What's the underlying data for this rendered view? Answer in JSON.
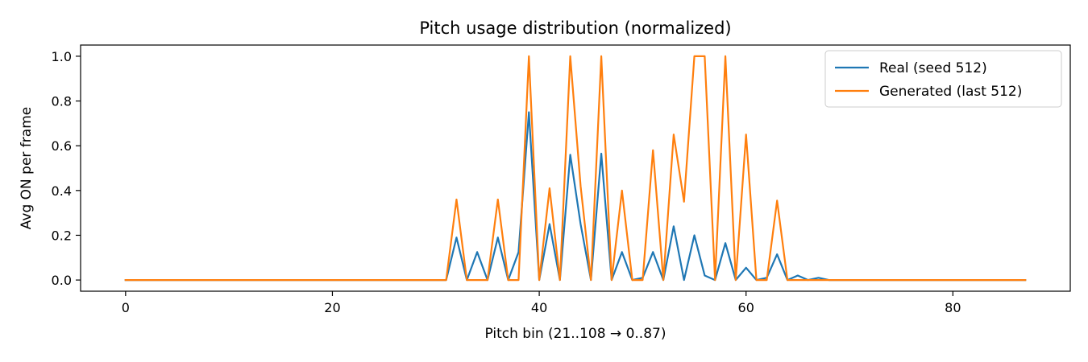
{
  "chart_data": {
    "type": "line",
    "title": "Pitch usage distribution (normalized)",
    "xlabel": "Pitch bin (21..108 → 0..87)",
    "ylabel": "Avg ON per frame",
    "xlim": [
      -4.35,
      91.35
    ],
    "ylim": [
      -0.05,
      1.05
    ],
    "xticks": [
      0,
      20,
      40,
      60,
      80
    ],
    "xtick_labels": [
      "0",
      "20",
      "40",
      "60",
      "80"
    ],
    "yticks": [
      0.0,
      0.2,
      0.4,
      0.6,
      0.8,
      1.0
    ],
    "ytick_labels": [
      "0.0",
      "0.2",
      "0.4",
      "0.6",
      "0.8",
      "1.0"
    ],
    "grid": false,
    "legend_position": "upper right",
    "x": [
      0,
      1,
      2,
      3,
      4,
      5,
      6,
      7,
      8,
      9,
      10,
      11,
      12,
      13,
      14,
      15,
      16,
      17,
      18,
      19,
      20,
      21,
      22,
      23,
      24,
      25,
      26,
      27,
      28,
      29,
      30,
      31,
      32,
      33,
      34,
      35,
      36,
      37,
      38,
      39,
      40,
      41,
      42,
      43,
      44,
      45,
      46,
      47,
      48,
      49,
      50,
      51,
      52,
      53,
      54,
      55,
      56,
      57,
      58,
      59,
      60,
      61,
      62,
      63,
      64,
      65,
      66,
      67,
      68,
      69,
      70,
      71,
      72,
      73,
      74,
      75,
      76,
      77,
      78,
      79,
      80,
      81,
      82,
      83,
      84,
      85,
      86,
      87
    ],
    "series": [
      {
        "name": "Real (seed 512)",
        "color": "#1f77b4",
        "values": [
          0,
          0,
          0,
          0,
          0,
          0,
          0,
          0,
          0,
          0,
          0,
          0,
          0,
          0,
          0,
          0,
          0,
          0,
          0,
          0,
          0,
          0,
          0,
          0,
          0,
          0,
          0,
          0,
          0,
          0,
          0,
          0,
          0.19,
          0,
          0.125,
          0,
          0.19,
          0,
          0.125,
          0.75,
          0,
          0.25,
          0,
          0.56,
          0.25,
          0,
          0.565,
          0,
          0.125,
          0,
          0.01,
          0.125,
          0,
          0.24,
          0,
          0.2,
          0.02,
          0,
          0.165,
          0,
          0.055,
          0,
          0.01,
          0.115,
          0,
          0.02,
          0,
          0.01,
          0,
          0,
          0,
          0,
          0,
          0,
          0,
          0,
          0,
          0,
          0,
          0,
          0,
          0,
          0,
          0,
          0,
          0,
          0,
          0
        ]
      },
      {
        "name": "Generated (last 512)",
        "color": "#ff7f0e",
        "values": [
          0,
          0,
          0,
          0,
          0,
          0,
          0,
          0,
          0,
          0,
          0,
          0,
          0,
          0,
          0,
          0,
          0,
          0,
          0,
          0,
          0,
          0,
          0,
          0,
          0,
          0,
          0,
          0,
          0,
          0,
          0,
          0,
          0.36,
          0,
          0,
          0,
          0.36,
          0,
          0,
          1.0,
          0,
          0.41,
          0,
          1.0,
          0.42,
          0,
          1.0,
          0,
          0.4,
          0,
          0,
          0.58,
          0,
          0.65,
          0.35,
          1.0,
          1.0,
          0,
          1.0,
          0,
          0.65,
          0,
          0,
          0.355,
          0,
          0,
          0,
          0,
          0,
          0,
          0,
          0,
          0,
          0,
          0,
          0,
          0,
          0,
          0,
          0,
          0,
          0,
          0,
          0,
          0,
          0,
          0,
          0
        ]
      }
    ]
  }
}
